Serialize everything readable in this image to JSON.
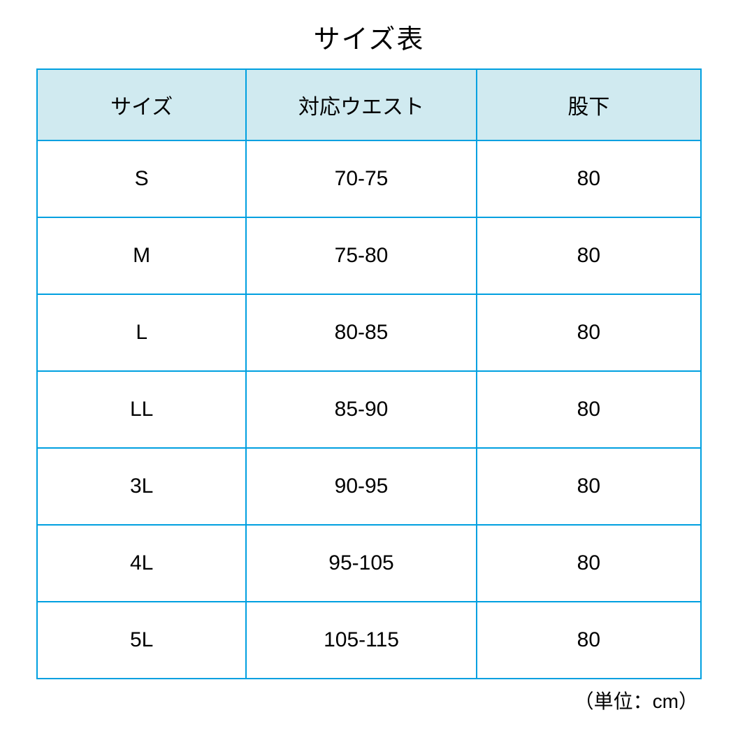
{
  "title": "サイズ表",
  "unit_note": "（単位：cm）",
  "table": {
    "border_color": "#00a0e0",
    "header_bg_color": "#d0eaf0",
    "body_bg_color": "#ffffff",
    "text_color": "#000000",
    "title_fontsize": 38,
    "cell_fontsize": 30,
    "note_fontsize": 28,
    "columns": [
      "サイズ",
      "対応ウエスト",
      "股下"
    ],
    "rows": [
      [
        "S",
        "70-75",
        "80"
      ],
      [
        "M",
        "75-80",
        "80"
      ],
      [
        "L",
        "80-85",
        "80"
      ],
      [
        "LL",
        "85-90",
        "80"
      ],
      [
        "3L",
        "90-95",
        "80"
      ],
      [
        "4L",
        "95-105",
        "80"
      ],
      [
        "5L",
        "105-115",
        "80"
      ]
    ]
  }
}
